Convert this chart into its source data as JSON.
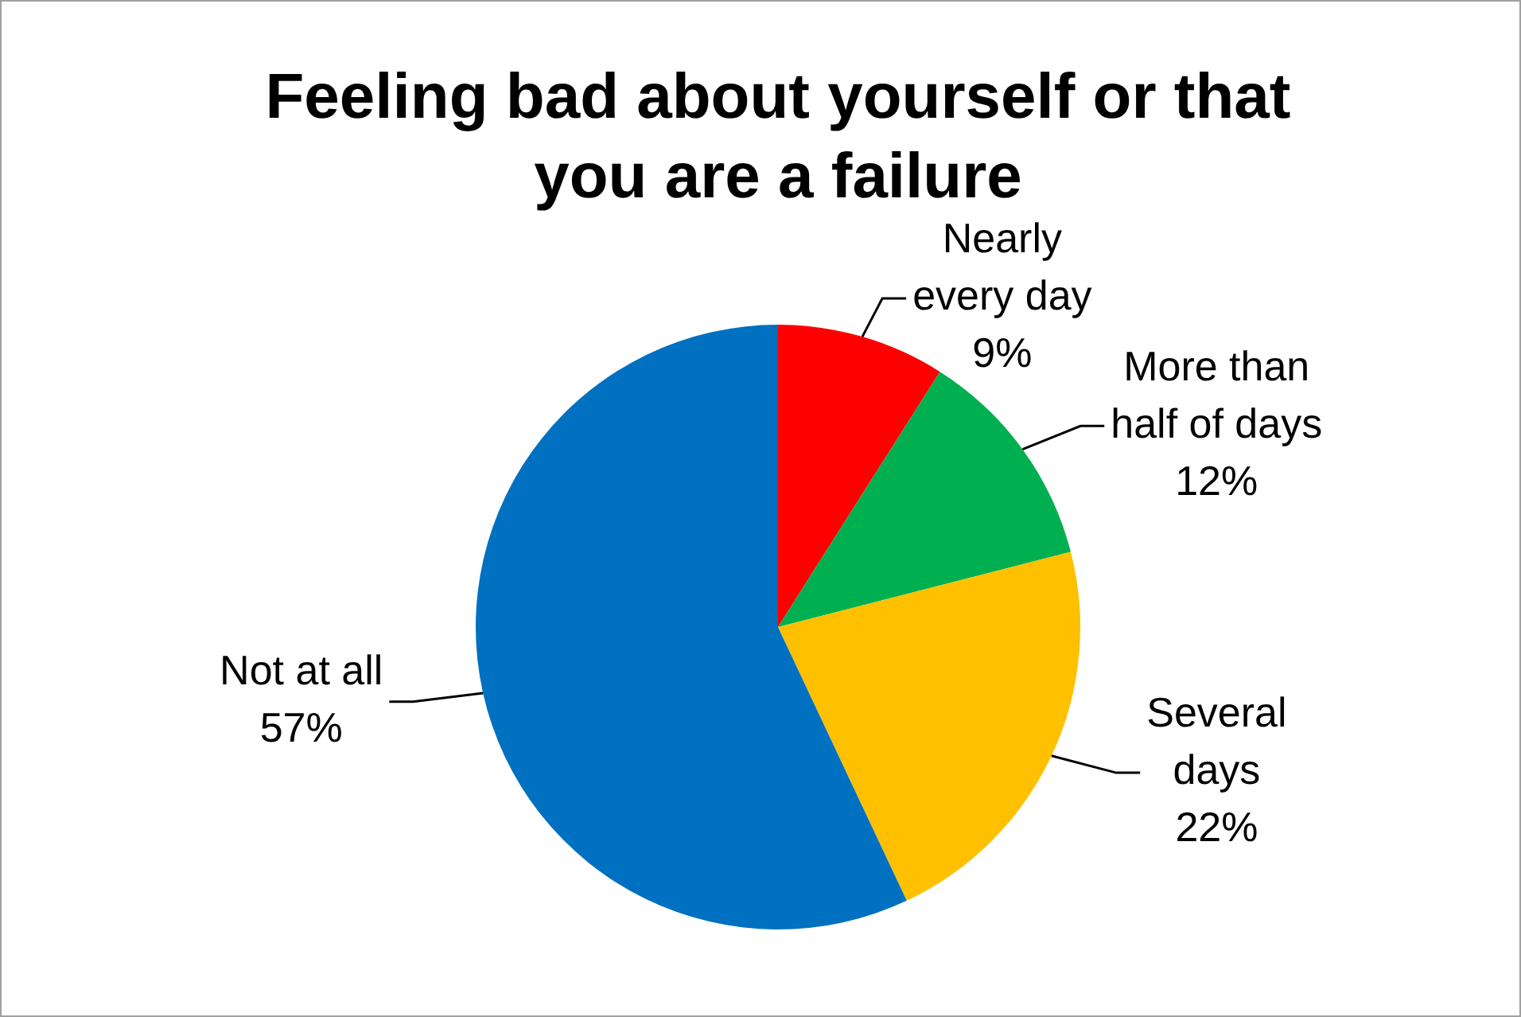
{
  "chart_data": {
    "type": "pie",
    "title": "Feeling bad about yourself or that you are a failure",
    "categories": [
      "Nearly every day",
      "More than half of days",
      "Several days",
      "Not at all"
    ],
    "values": [
      9,
      12,
      22,
      57
    ],
    "colors": [
      "#ff0000",
      "#00b050",
      "#ffc000",
      "#0070c0"
    ],
    "value_labels": [
      "9%",
      "12%",
      "22%",
      "57%"
    ],
    "legend": false
  }
}
